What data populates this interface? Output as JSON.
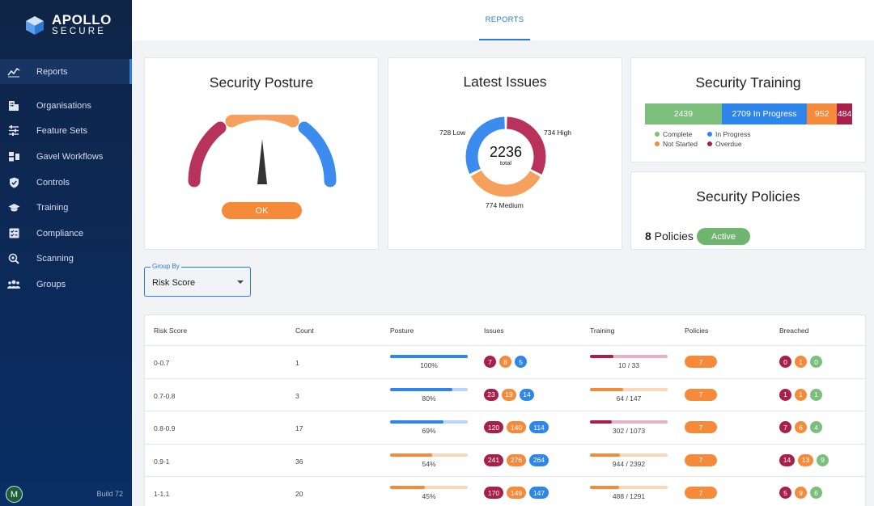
{
  "brand": {
    "name": "APOLLO",
    "sub": "SECURE"
  },
  "sidebar": {
    "items": [
      {
        "label": "Reports",
        "icon": "chart-line-icon",
        "active": true
      },
      {
        "label": "Organisations",
        "icon": "building-icon"
      },
      {
        "label": "Feature Sets",
        "icon": "sliders-icon"
      },
      {
        "label": "Gavel Workflows",
        "icon": "workflow-icon"
      },
      {
        "label": "Controls",
        "icon": "shield-check-icon"
      },
      {
        "label": "Training",
        "icon": "graduation-cap-icon"
      },
      {
        "label": "Compliance",
        "icon": "checklist-icon"
      },
      {
        "label": "Scanning",
        "icon": "scan-search-icon"
      },
      {
        "label": "Groups",
        "icon": "people-icon"
      }
    ],
    "avatar": "M",
    "build": "Build 72"
  },
  "tabs": [
    {
      "label": "REPORTS",
      "active": true
    }
  ],
  "posture": {
    "title": "Security Posture",
    "status": "OK"
  },
  "issues": {
    "title": "Latest Issues",
    "total": "2236",
    "total_label": "total",
    "low_label": "728 Low",
    "high_label": "734 High",
    "medium_label": "774 Medium",
    "low": 728,
    "high": 734,
    "medium": 774
  },
  "training": {
    "title": "Security Training",
    "segments": [
      {
        "label": "2439",
        "value": 2439,
        "color": "#7cbf7c"
      },
      {
        "label": "2709 In Progress",
        "value": 2709,
        "color": "#2f86ea"
      },
      {
        "label": "952",
        "value": 952,
        "color": "#f58a3a"
      },
      {
        "label": "484",
        "value": 484,
        "color": "#a8204a"
      }
    ],
    "legend": [
      {
        "label": "Complete",
        "color": "#7cbf7c"
      },
      {
        "label": "In Progress",
        "color": "#2f86ea"
      },
      {
        "label": "Not Started",
        "color": "#f58a3a"
      },
      {
        "label": "Overdue",
        "color": "#a8204a"
      }
    ]
  },
  "policies": {
    "title": "Security Policies",
    "count": "8",
    "count_suffix": " Policies",
    "status": "Active"
  },
  "group_by": {
    "legend": "Group By",
    "value": "Risk Score"
  },
  "table": {
    "headers": [
      "Risk Score",
      "Count",
      "Posture",
      "Issues",
      "Training",
      "Policies",
      "Breached"
    ],
    "rows": [
      {
        "risk": "0-0.7",
        "count": "1",
        "posture": 1.0,
        "posture_label": "100%",
        "posture_tone": "blue",
        "issues": [
          "7",
          "8",
          "5"
        ],
        "training": 0.3,
        "training_label": "10 / 33",
        "training_tone": "red",
        "policies": "7",
        "breached": [
          "0",
          "1",
          "0"
        ]
      },
      {
        "risk": "0.7-0.8",
        "count": "3",
        "posture": 0.8,
        "posture_label": "80%",
        "posture_tone": "blue",
        "issues": [
          "23",
          "19",
          "14"
        ],
        "training": 0.43,
        "training_label": "64 / 147",
        "training_tone": "orange",
        "policies": "7",
        "breached": [
          "1",
          "1",
          "1"
        ]
      },
      {
        "risk": "0.8-0.9",
        "count": "17",
        "posture": 0.69,
        "posture_label": "69%",
        "posture_tone": "blue",
        "issues": [
          "120",
          "140",
          "114"
        ],
        "training": 0.28,
        "training_label": "302 / 1073",
        "training_tone": "red",
        "policies": "7",
        "breached": [
          "7",
          "6",
          "4"
        ]
      },
      {
        "risk": "0.9-1",
        "count": "36",
        "posture": 0.54,
        "posture_label": "54%",
        "posture_tone": "orange",
        "issues": [
          "241",
          "276",
          "264"
        ],
        "training": 0.39,
        "training_label": "944 / 2392",
        "training_tone": "orange",
        "policies": "7",
        "breached": [
          "14",
          "13",
          "9"
        ]
      },
      {
        "risk": "1-1.1",
        "count": "20",
        "posture": 0.45,
        "posture_label": "45%",
        "posture_tone": "orange",
        "issues": [
          "170",
          "149",
          "147"
        ],
        "training": 0.38,
        "training_label": "488 / 1291",
        "training_tone": "orange",
        "policies": "7",
        "breached": [
          "5",
          "9",
          "6"
        ]
      }
    ]
  },
  "colors": {
    "red": "#a8204a",
    "orange": "#f58a3a",
    "blue": "#2f86ea",
    "green": "#7cbf7c",
    "accent": "#2b7bd8"
  }
}
